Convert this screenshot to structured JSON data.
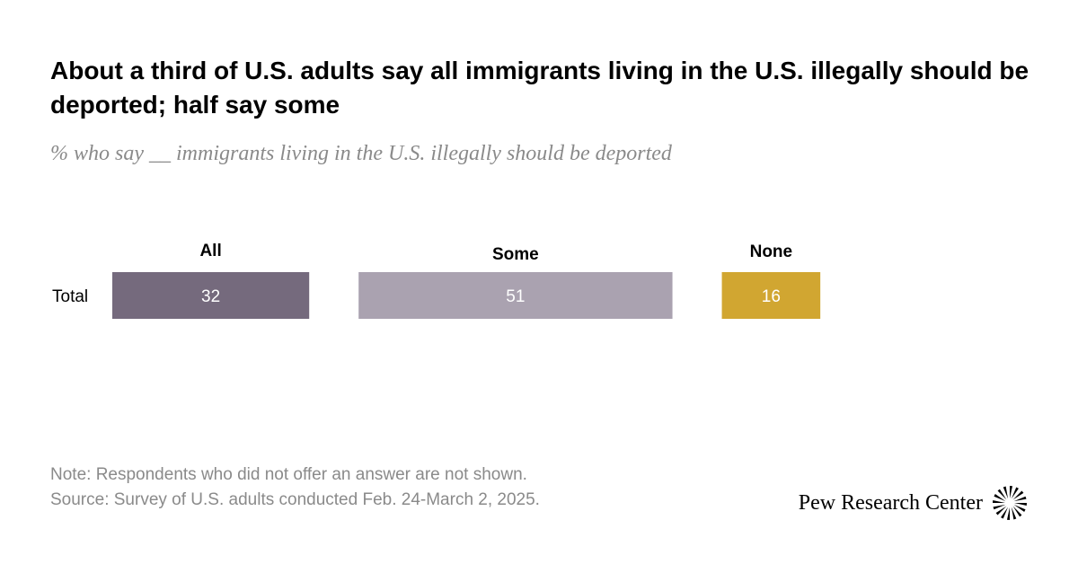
{
  "title": "About a third of U.S. adults say all immigrants living in the U.S. illegally should be deported; half say some",
  "subtitle": "% who say __ immigrants living in the U.S. illegally should be deported",
  "note": "Note: Respondents who did not offer an answer are not shown.",
  "source": "Source: Survey of U.S. adults conducted Feb. 24-March 2, 2025.",
  "brand": {
    "name": "Pew Research Center",
    "logo_icon": "pew-sunburst-icon"
  },
  "chart_data": {
    "type": "bar",
    "orientation": "horizontal-stacked-segments",
    "title": "About a third of U.S. adults say all immigrants living in the U.S. illegally should be deported; half say some",
    "rows": [
      "Total"
    ],
    "series": [
      {
        "name": "All",
        "values": [
          32
        ],
        "color": "#756a7d"
      },
      {
        "name": "Some",
        "values": [
          51
        ],
        "color": "#aaa2b0"
      },
      {
        "name": "None",
        "values": [
          16
        ],
        "color": "#d1a631"
      }
    ],
    "xlabel": "",
    "ylabel": "",
    "grid": false,
    "legend": "column-headers-above-bars"
  }
}
